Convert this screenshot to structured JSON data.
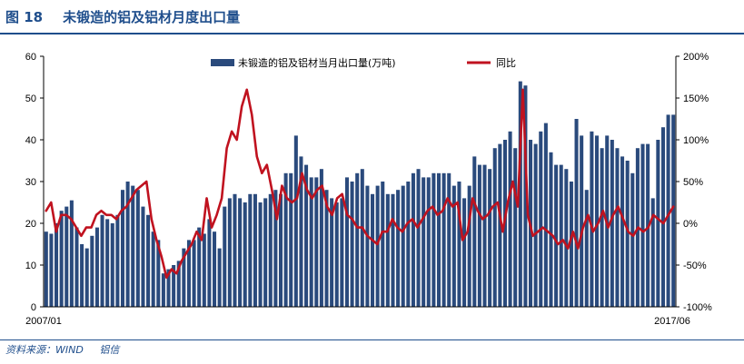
{
  "figure": {
    "number": "图 18",
    "title": "未锻造的铝及铝材月度出口量",
    "source_label": "资料来源：WIND",
    "source_org": "铝信",
    "accent_color": "#1f4e8c"
  },
  "chart_data": {
    "type": "bar",
    "title": "未锻造的铝及铝材月度出口量",
    "x_start_label": "2007/01",
    "x_end_label": "2017/06",
    "y_left": {
      "ylim": [
        0,
        60
      ],
      "ticks": [
        "0",
        "10",
        "20",
        "30",
        "40",
        "50",
        "60"
      ],
      "tick_values": [
        0,
        10,
        20,
        30,
        40,
        50,
        60
      ]
    },
    "y_right": {
      "ylim": [
        -100,
        200
      ],
      "ticks": [
        "-100%",
        "-50%",
        "0%",
        "50%",
        "100%",
        "150%",
        "200%"
      ],
      "tick_values": [
        -100,
        -50,
        0,
        50,
        100,
        150,
        200
      ]
    },
    "grid": false,
    "legend_position": "top-center",
    "series": [
      {
        "name": "未锻造的铝及铝材当月出口量(万吨)",
        "kind": "bar",
        "axis": "left",
        "color": "#2a4a7c",
        "values": [
          18,
          17.5,
          20,
          23,
          24,
          25.5,
          19,
          15,
          14,
          17,
          19,
          22,
          21,
          20,
          22,
          28,
          30,
          29,
          28,
          24,
          22,
          18,
          16,
          8,
          9,
          10,
          11,
          14,
          16,
          16,
          19,
          17.5,
          21,
          18,
          14,
          24,
          26,
          27,
          26,
          25,
          27,
          27,
          25,
          26,
          27,
          28,
          27,
          32,
          32,
          41,
          36,
          34,
          31,
          31,
          33,
          28,
          26,
          25,
          26,
          31,
          30,
          32,
          33,
          29,
          27,
          29,
          30,
          27,
          27,
          28,
          29,
          30,
          32,
          33,
          31,
          31,
          32,
          32,
          32,
          32,
          29,
          30,
          26,
          29,
          36,
          34,
          34,
          33,
          38,
          39,
          40,
          42,
          38,
          54,
          53,
          40,
          39,
          42,
          44,
          37,
          34,
          34,
          33,
          30,
          45,
          41,
          28,
          42,
          41,
          38,
          41,
          40,
          38,
          36,
          35,
          32,
          38,
          39,
          39,
          26,
          40,
          43,
          46,
          46
        ]
      },
      {
        "name": "同比",
        "kind": "line",
        "axis": "right",
        "color": "#c0121f",
        "values": [
          15,
          25,
          -10,
          10,
          10,
          5,
          -5,
          -15,
          -5,
          -5,
          10,
          15,
          10,
          10,
          5,
          15,
          20,
          30,
          40,
          45,
          50,
          5,
          -20,
          -40,
          -65,
          -55,
          -60,
          -45,
          -35,
          -25,
          -10,
          -20,
          30,
          -5,
          10,
          30,
          90,
          110,
          100,
          140,
          160,
          130,
          80,
          60,
          70,
          40,
          5,
          45,
          30,
          25,
          30,
          60,
          40,
          30,
          40,
          45,
          20,
          10,
          30,
          35,
          10,
          5,
          -5,
          -5,
          -15,
          -20,
          -25,
          -10,
          -10,
          5,
          -5,
          -10,
          0,
          5,
          -5,
          5,
          15,
          20,
          10,
          15,
          30,
          20,
          25,
          -20,
          -10,
          30,
          15,
          5,
          10,
          20,
          25,
          -10,
          25,
          50,
          20,
          160,
          10,
          -15,
          -10,
          -5,
          -10,
          -15,
          -25,
          -20,
          -30,
          -10,
          -30,
          -5,
          10,
          -10,
          0,
          15,
          -5,
          10,
          20,
          5,
          -10,
          -15,
          -5,
          -10,
          -5,
          10,
          5,
          0,
          10,
          20
        ]
      }
    ]
  }
}
